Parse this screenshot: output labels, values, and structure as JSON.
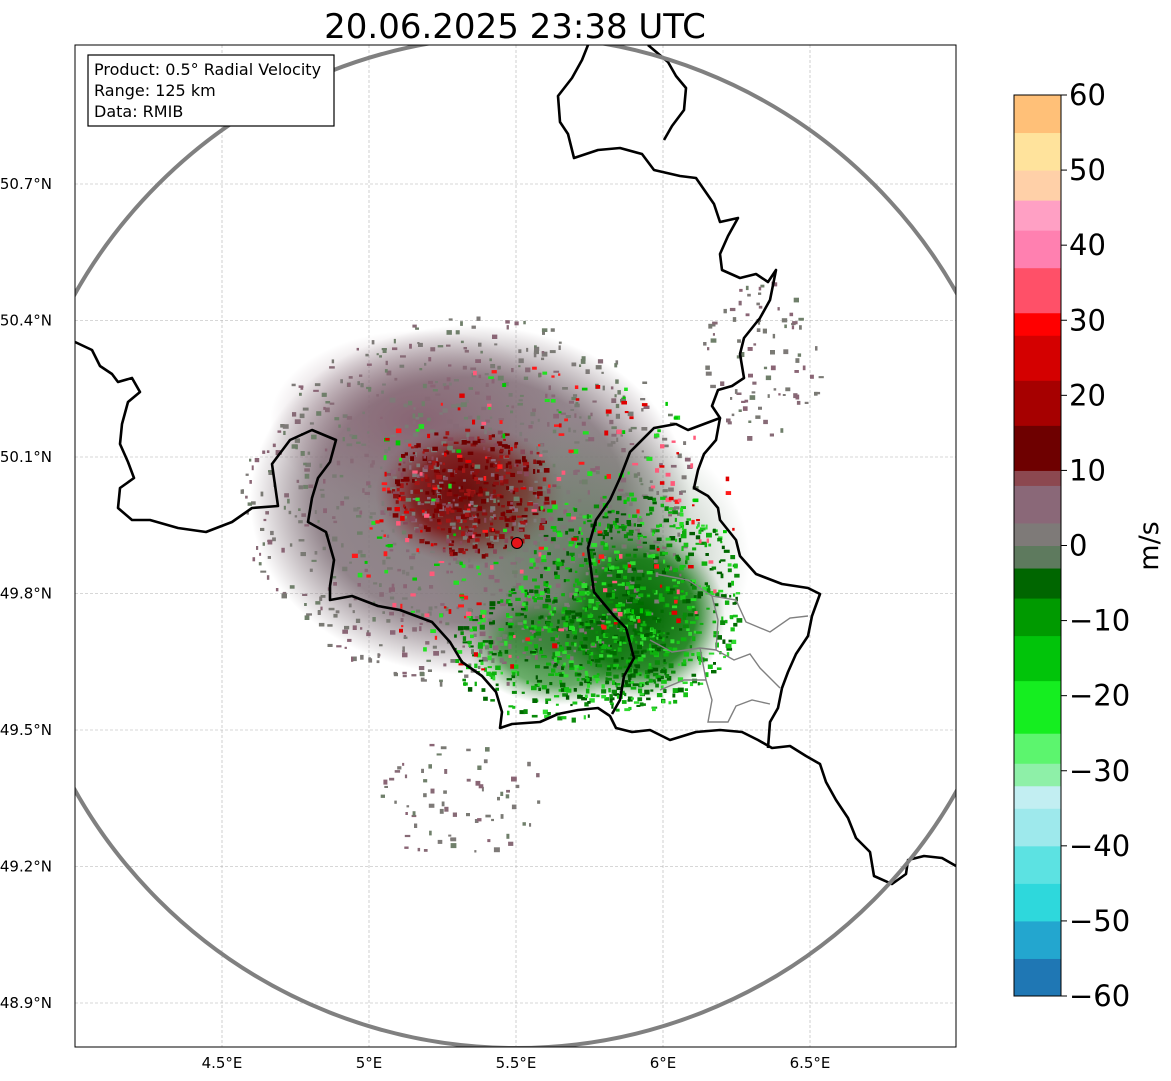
{
  "title": "20.06.2025 23:38 UTC",
  "info_box": {
    "product": "Product: 0.5° Radial Velocity",
    "range": "Range: 125 km",
    "data": "Data: RMIB"
  },
  "axes": {
    "lat_labels": [
      "50.7°N",
      "50.4°N",
      "50.1°N",
      "49.8°N",
      "49.5°N",
      "49.2°N",
      "48.9°N"
    ],
    "lat_values": [
      50.7,
      50.4,
      50.1,
      49.8,
      49.5,
      49.2,
      48.9
    ],
    "lon_labels": [
      "4.5°E",
      "5°E",
      "5.5°E",
      "6°E",
      "6.5°E"
    ],
    "lon_values": [
      4.5,
      5.0,
      5.5,
      6.0,
      6.5
    ],
    "lon_range": [
      4.0,
      7.0
    ],
    "lat_range": [
      48.8,
      51.0
    ]
  },
  "radar_site": {
    "lon": 5.5,
    "lat": 49.92
  },
  "colorbar": {
    "label": "m/s",
    "tick_labels": [
      "60",
      "50",
      "40",
      "30",
      "20",
      "10",
      "0",
      "−10",
      "−20",
      "−30",
      "−40",
      "−50",
      "−60"
    ],
    "range": [
      -60,
      60
    ],
    "stops": [
      {
        "v": -60,
        "c": "#1f77b4"
      },
      {
        "v": -55,
        "c": "#23a6cf"
      },
      {
        "v": -50,
        "c": "#2ed8dc"
      },
      {
        "v": -45,
        "c": "#5ce2e2"
      },
      {
        "v": -40,
        "c": "#9ee9ec"
      },
      {
        "v": -35,
        "c": "#c2eef2"
      },
      {
        "v": -32,
        "c": "#8ef0a8"
      },
      {
        "v": -29,
        "c": "#5cf56e"
      },
      {
        "v": -25,
        "c": "#15ee20"
      },
      {
        "v": -18,
        "c": "#01c40a"
      },
      {
        "v": -12,
        "c": "#009a00"
      },
      {
        "v": -7,
        "c": "#006600"
      },
      {
        "v": -3,
        "c": "#5e7a5e"
      },
      {
        "v": 0,
        "c": "#7e7a78"
      },
      {
        "v": 3,
        "c": "#8a6878"
      },
      {
        "v": 8,
        "c": "#8c4850"
      },
      {
        "v": 10,
        "c": "#6e0000"
      },
      {
        "v": 16,
        "c": "#a60000"
      },
      {
        "v": 22,
        "c": "#d40000"
      },
      {
        "v": 28,
        "c": "#ff0000"
      },
      {
        "v": 31,
        "c": "#ff5068"
      },
      {
        "v": 37,
        "c": "#ff80b0"
      },
      {
        "v": 42,
        "c": "#ffa0c4"
      },
      {
        "v": 46,
        "c": "#ffd0a8"
      },
      {
        "v": 50,
        "c": "#ffe39c"
      },
      {
        "v": 55,
        "c": "#ffc078"
      },
      {
        "v": 60,
        "c": "#ff9a50"
      }
    ]
  },
  "colors": {
    "border": "#000000",
    "range_ring": "#808080",
    "grid": "#b0b0b0",
    "inbound_green": "#006b00",
    "outbound_red": "#7a0000",
    "neutral": "#7e7a78"
  }
}
